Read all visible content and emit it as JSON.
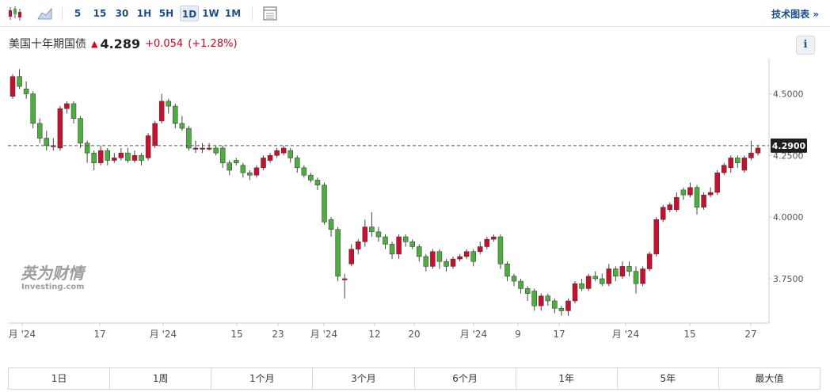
{
  "toolbar": {
    "periods": [
      "5",
      "15",
      "30",
      "1H",
      "5H",
      "1D",
      "1W",
      "1M"
    ],
    "active_period": "1D",
    "tech_chart_link": "技术图表 »"
  },
  "quote": {
    "name": "美国十年期国债",
    "price": "4.289",
    "change": "+0.054",
    "change_pct": "(+1.28%)"
  },
  "watermark": {
    "brand_cn": "英为财情",
    "brand_en": "Investing.com"
  },
  "range_buttons": [
    "1日",
    "1周",
    "1个月",
    "3个月",
    "6个月",
    "1年",
    "5年",
    "最大值"
  ],
  "colors": {
    "up": "#c8102e",
    "down": "#4caf3d",
    "accent": "#1a4e8e",
    "change": "#d0021b"
  },
  "chart_data": {
    "type": "candlestick",
    "y_axis_ticks": [
      "4.5000",
      "4.2500",
      "4.0000",
      "3.7500"
    ],
    "ylim": [
      3.57,
      4.63
    ],
    "current_value_label": "4.2900",
    "current_value": 4.29,
    "x_tick_labels": [
      "月 '24",
      "17",
      "月 '24",
      "15",
      "23",
      "月 '24",
      "12",
      "20",
      "月 '24",
      "9",
      "17",
      "月 '24",
      "15",
      "27"
    ],
    "candles": [
      [
        4.49,
        4.57,
        4.58,
        4.48
      ],
      [
        4.57,
        4.53,
        4.6,
        4.52
      ],
      [
        4.52,
        4.5,
        4.55,
        4.48
      ],
      [
        4.5,
        4.38,
        4.51,
        4.36
      ],
      [
        4.38,
        4.32,
        4.4,
        4.3
      ],
      [
        4.32,
        4.29,
        4.35,
        4.27
      ],
      [
        4.29,
        4.29,
        4.32,
        4.27
      ],
      [
        4.28,
        4.44,
        4.45,
        4.27
      ],
      [
        4.44,
        4.46,
        4.47,
        4.42
      ],
      [
        4.46,
        4.4,
        4.47,
        4.38
      ],
      [
        4.4,
        4.3,
        4.41,
        4.28
      ],
      [
        4.3,
        4.26,
        4.31,
        4.22
      ],
      [
        4.26,
        4.22,
        4.27,
        4.19
      ],
      [
        4.22,
        4.27,
        4.29,
        4.21
      ],
      [
        4.27,
        4.23,
        4.28,
        4.21
      ],
      [
        4.23,
        4.24,
        4.26,
        4.22
      ],
      [
        4.24,
        4.26,
        4.28,
        4.23
      ],
      [
        4.26,
        4.23,
        4.28,
        4.22
      ],
      [
        4.23,
        4.25,
        4.27,
        4.22
      ],
      [
        4.25,
        4.23,
        4.26,
        4.21
      ],
      [
        4.24,
        4.33,
        4.34,
        4.23
      ],
      [
        4.29,
        4.38,
        4.39,
        4.28
      ],
      [
        4.39,
        4.47,
        4.5,
        4.38
      ],
      [
        4.47,
        4.45,
        4.48,
        4.42
      ],
      [
        4.45,
        4.38,
        4.46,
        4.36
      ],
      [
        4.38,
        4.36,
        4.41,
        4.35
      ],
      [
        4.36,
        4.28,
        4.37,
        4.27
      ],
      [
        4.28,
        4.28,
        4.31,
        4.26
      ],
      [
        4.28,
        4.28,
        4.3,
        4.26
      ],
      [
        4.28,
        4.28,
        4.3,
        4.27
      ],
      [
        4.28,
        4.26,
        4.29,
        4.25
      ],
      [
        4.28,
        4.22,
        4.29,
        4.2
      ],
      [
        4.22,
        4.19,
        4.23,
        4.17
      ],
      [
        4.23,
        4.22,
        4.24,
        4.21
      ],
      [
        4.21,
        4.18,
        4.22,
        4.16
      ],
      [
        4.18,
        4.17,
        4.19,
        4.15
      ],
      [
        4.17,
        4.2,
        4.21,
        4.16
      ],
      [
        4.2,
        4.24,
        4.25,
        4.19
      ],
      [
        4.23,
        4.25,
        4.26,
        4.22
      ],
      [
        4.25,
        4.27,
        4.28,
        4.24
      ],
      [
        4.26,
        4.28,
        4.29,
        4.25
      ],
      [
        4.27,
        4.24,
        4.28,
        4.22
      ],
      [
        4.24,
        4.2,
        4.25,
        4.18
      ],
      [
        4.2,
        4.17,
        4.21,
        4.16
      ],
      [
        4.17,
        4.15,
        4.18,
        4.14
      ],
      [
        4.15,
        4.13,
        4.16,
        4.11
      ],
      [
        4.13,
        3.98,
        4.14,
        3.97
      ],
      [
        3.99,
        3.95,
        4.0,
        3.92
      ],
      [
        3.95,
        3.76,
        3.96,
        3.74
      ],
      [
        3.75,
        3.75,
        3.77,
        3.67
      ],
      [
        3.81,
        3.87,
        3.89,
        3.8
      ],
      [
        3.87,
        3.9,
        3.91,
        3.85
      ],
      [
        3.9,
        3.96,
        3.99,
        3.88
      ],
      [
        3.96,
        3.94,
        4.02,
        3.92
      ],
      [
        3.94,
        3.92,
        3.96,
        3.9
      ],
      [
        3.92,
        3.89,
        3.93,
        3.87
      ],
      [
        3.89,
        3.85,
        3.9,
        3.83
      ],
      [
        3.85,
        3.92,
        3.93,
        3.83
      ],
      [
        3.92,
        3.9,
        3.93,
        3.88
      ],
      [
        3.9,
        3.88,
        3.91,
        3.87
      ],
      [
        3.88,
        3.84,
        3.89,
        3.82
      ],
      [
        3.84,
        3.8,
        3.85,
        3.78
      ],
      [
        3.8,
        3.86,
        3.87,
        3.79
      ],
      [
        3.86,
        3.82,
        3.87,
        3.79
      ],
      [
        3.82,
        3.8,
        3.83,
        3.78
      ],
      [
        3.8,
        3.83,
        3.84,
        3.79
      ],
      [
        3.83,
        3.84,
        3.85,
        3.82
      ],
      [
        3.84,
        3.86,
        3.87,
        3.83
      ],
      [
        3.86,
        3.82,
        3.87,
        3.8
      ],
      [
        3.86,
        3.88,
        3.9,
        3.85
      ],
      [
        3.88,
        3.91,
        3.92,
        3.87
      ],
      [
        3.91,
        3.92,
        3.93,
        3.9
      ],
      [
        3.92,
        3.81,
        3.93,
        3.79
      ],
      [
        3.81,
        3.76,
        3.82,
        3.74
      ],
      [
        3.76,
        3.74,
        3.77,
        3.72
      ],
      [
        3.74,
        3.71,
        3.75,
        3.69
      ],
      [
        3.71,
        3.69,
        3.72,
        3.66
      ],
      [
        3.7,
        3.64,
        3.71,
        3.62
      ],
      [
        3.64,
        3.68,
        3.69,
        3.62
      ],
      [
        3.68,
        3.66,
        3.69,
        3.64
      ],
      [
        3.66,
        3.63,
        3.67,
        3.61
      ],
      [
        3.63,
        3.62,
        3.64,
        3.6
      ],
      [
        3.62,
        3.66,
        3.67,
        3.6
      ],
      [
        3.66,
        3.73,
        3.74,
        3.65
      ],
      [
        3.73,
        3.71,
        3.75,
        3.7
      ],
      [
        3.71,
        3.76,
        3.77,
        3.7
      ],
      [
        3.76,
        3.75,
        3.78,
        3.74
      ],
      [
        3.75,
        3.73,
        3.77,
        3.72
      ],
      [
        3.73,
        3.79,
        3.81,
        3.72
      ],
      [
        3.79,
        3.76,
        3.8,
        3.74
      ],
      [
        3.76,
        3.8,
        3.82,
        3.75
      ],
      [
        3.8,
        3.78,
        3.82,
        3.76
      ],
      [
        3.78,
        3.73,
        3.8,
        3.69
      ],
      [
        3.73,
        3.79,
        3.8,
        3.72
      ],
      [
        3.79,
        3.85,
        3.86,
        3.78
      ],
      [
        3.85,
        3.99,
        4.0,
        3.84
      ],
      [
        3.99,
        4.04,
        4.05,
        3.98
      ],
      [
        4.03,
        4.05,
        4.06,
        4.02
      ],
      [
        4.03,
        4.08,
        4.1,
        4.02
      ],
      [
        4.11,
        4.09,
        4.12,
        4.07
      ],
      [
        4.09,
        4.12,
        4.14,
        4.08
      ],
      [
        4.12,
        4.04,
        4.13,
        4.01
      ],
      [
        4.04,
        4.09,
        4.1,
        4.03
      ],
      [
        4.09,
        4.1,
        4.12,
        4.08
      ],
      [
        4.1,
        4.18,
        4.19,
        4.09
      ],
      [
        4.18,
        4.21,
        4.22,
        4.17
      ],
      [
        4.2,
        4.24,
        4.25,
        4.18
      ],
      [
        4.24,
        4.22,
        4.25,
        4.2
      ],
      [
        4.19,
        4.24,
        4.25,
        4.18
      ],
      [
        4.24,
        4.26,
        4.31,
        4.23
      ],
      [
        4.26,
        4.28,
        4.29,
        4.25
      ]
    ]
  }
}
